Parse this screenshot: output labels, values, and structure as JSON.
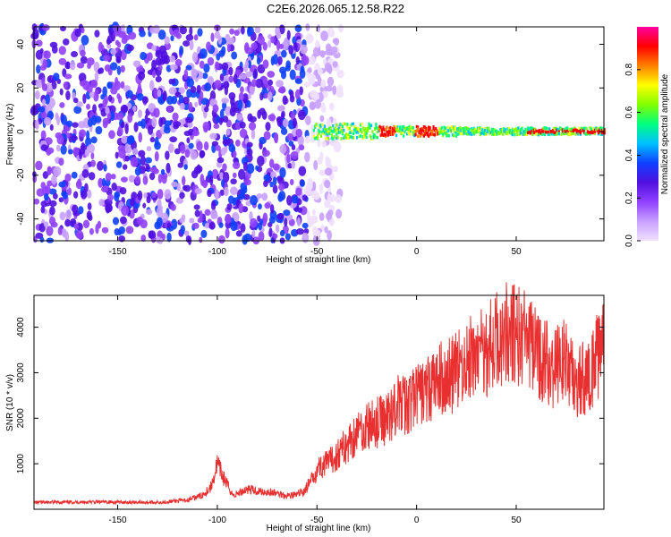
{
  "title": "C2E6.2026.065.12.58.R22",
  "chart_data": [
    {
      "type": "heatmap",
      "xlabel": "Height of straight line (km)",
      "ylabel": "Frequency (Hz)",
      "xlim": [
        -192,
        94
      ],
      "ylim": [
        -50,
        48
      ],
      "xticks": [
        -150,
        -100,
        -50,
        0,
        50
      ],
      "yticks": [
        -40,
        -20,
        0,
        20,
        40
      ],
      "colorbar": {
        "label": "Normalized spectral amplitude",
        "range": [
          0,
          1
        ],
        "ticks": [
          0.0,
          0.2,
          0.4,
          0.6,
          0.8
        ],
        "colors": [
          "#ffffff",
          "#f0e0ff",
          "#c8a0ff",
          "#9040ff",
          "#5010e0",
          "#1040ff",
          "#00c0ff",
          "#00ff80",
          "#80ff00",
          "#ffff00",
          "#ff8000",
          "#ff0000",
          "#ff00a0"
        ]
      },
      "noise_region": {
        "x_range": [
          -192,
          -38
        ],
        "level": 0.15
      },
      "signal_band": {
        "x_range": [
          -52,
          94
        ],
        "center_freq": 0,
        "level": 0.5
      },
      "grid": false
    },
    {
      "type": "line",
      "xlabel": "Height of straight line (km)",
      "ylabel": "SNR (10 * v/v)",
      "xlim": [
        -192,
        94
      ],
      "ylim": [
        0,
        4700
      ],
      "xticks": [
        -150,
        -100,
        -50,
        0,
        50
      ],
      "yticks": [
        1000,
        2000,
        3000,
        4000
      ],
      "color": "#e83030",
      "grid": false,
      "x": [
        -192,
        -160,
        -130,
        -115,
        -108,
        -103,
        -100,
        -97,
        -92,
        -85,
        -80,
        -75,
        -70,
        -65,
        -60,
        -57,
        -53,
        -50,
        -45,
        -42,
        -38,
        -35,
        -30,
        -25,
        -20,
        -15,
        -10,
        -5,
        0,
        5,
        10,
        15,
        20,
        25,
        30,
        35,
        40,
        45,
        50,
        55,
        60,
        65,
        70,
        75,
        80,
        85,
        90,
        94
      ],
      "y": [
        150,
        160,
        150,
        200,
        300,
        500,
        1000,
        700,
        300,
        450,
        400,
        380,
        350,
        300,
        320,
        380,
        600,
        900,
        1000,
        1100,
        1300,
        1400,
        1700,
        1800,
        1900,
        2000,
        2300,
        2300,
        2500,
        2600,
        2800,
        2900,
        3000,
        3200,
        3400,
        3500,
        3700,
        3900,
        3800,
        3700,
        3400,
        3200,
        3100,
        3300,
        2700,
        2900,
        3300,
        3500
      ]
    }
  ]
}
